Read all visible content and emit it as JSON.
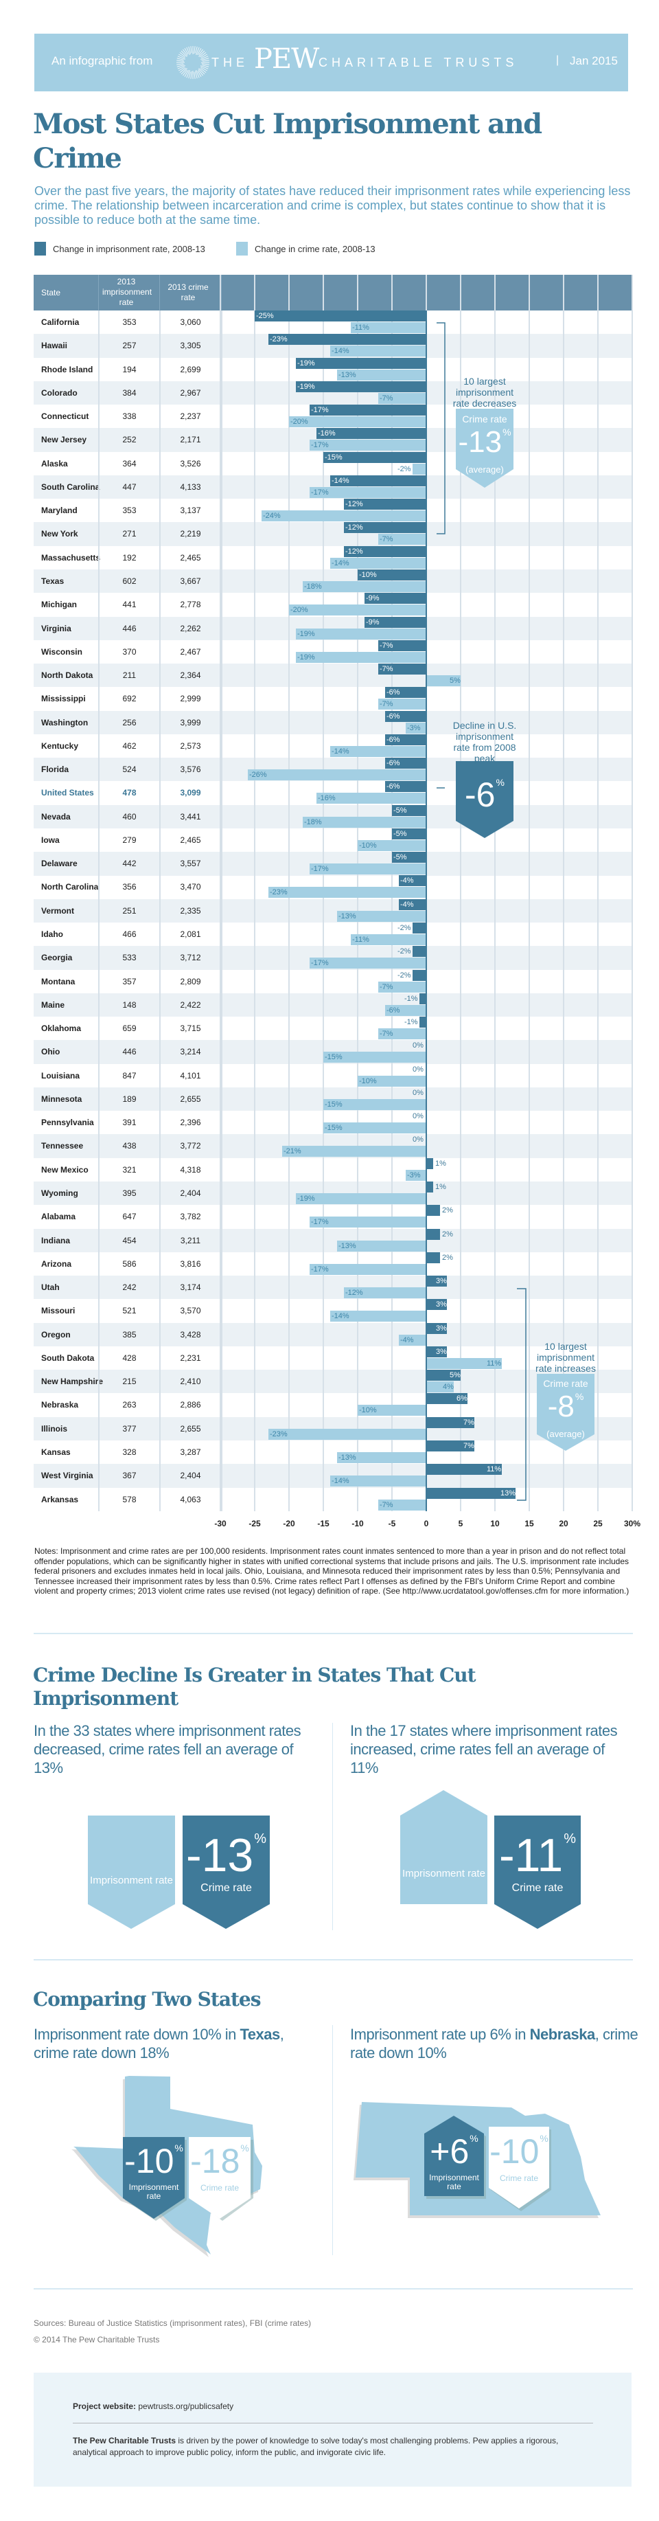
{
  "header": {
    "from_label": "An infographic from",
    "logo_the": "THE",
    "logo_pew": "PEW",
    "logo_rest": "CHARITABLE TRUSTS",
    "separator": "|",
    "date": "Jan 2015"
  },
  "title": "Most States Cut Imprisonment and Crime",
  "lead": "Over the past five years, the majority of states have reduced their imprisonment rates while experiencing less crime. The relationship between incarceration and crime is complex, but states continue to show that it is possible to reduce both at the same time.",
  "colors": {
    "dark": "#3f7a99",
    "light": "#a3cfe3",
    "title": "#3b7796",
    "header": "#6890aa"
  },
  "chart_data": {
    "type": "bar",
    "legend": [
      "Change in imprisonment rate, 2008-13",
      "Change in crime rate, 2008-13"
    ],
    "columns": [
      "State",
      "2013 imprisonment rate",
      "2013 crime rate"
    ],
    "xlim": [
      -30,
      30
    ],
    "xticks": [
      "-30",
      "-25",
      "-20",
      "-15",
      "-10",
      "-5",
      "0",
      "5",
      "10",
      "15",
      "20",
      "25",
      "30%"
    ],
    "rows": [
      {
        "state": "California",
        "imp_rate": "353",
        "crime_rate": "3,060",
        "imp_change": -25,
        "crime_change": -11
      },
      {
        "state": "Hawaii",
        "imp_rate": "257",
        "crime_rate": "3,305",
        "imp_change": -23,
        "crime_change": -14
      },
      {
        "state": "Rhode Island",
        "imp_rate": "194",
        "crime_rate": "2,699",
        "imp_change": -19,
        "crime_change": -13
      },
      {
        "state": "Colorado",
        "imp_rate": "384",
        "crime_rate": "2,967",
        "imp_change": -19,
        "crime_change": -7
      },
      {
        "state": "Connecticut",
        "imp_rate": "338",
        "crime_rate": "2,237",
        "imp_change": -17,
        "crime_change": -20
      },
      {
        "state": "New Jersey",
        "imp_rate": "252",
        "crime_rate": "2,171",
        "imp_change": -16,
        "crime_change": -17
      },
      {
        "state": "Alaska",
        "imp_rate": "364",
        "crime_rate": "3,526",
        "imp_change": -15,
        "crime_change": -2
      },
      {
        "state": "South Carolina",
        "imp_rate": "447",
        "crime_rate": "4,133",
        "imp_change": -14,
        "crime_change": -17
      },
      {
        "state": "Maryland",
        "imp_rate": "353",
        "crime_rate": "3,137",
        "imp_change": -12,
        "crime_change": -24
      },
      {
        "state": "New York",
        "imp_rate": "271",
        "crime_rate": "2,219",
        "imp_change": -12,
        "crime_change": -7
      },
      {
        "state": "Massachusetts",
        "imp_rate": "192",
        "crime_rate": "2,465",
        "imp_change": -12,
        "crime_change": -14
      },
      {
        "state": "Texas",
        "imp_rate": "602",
        "crime_rate": "3,667",
        "imp_change": -10,
        "crime_change": -18
      },
      {
        "state": "Michigan",
        "imp_rate": "441",
        "crime_rate": "2,778",
        "imp_change": -9,
        "crime_change": -20
      },
      {
        "state": "Virginia",
        "imp_rate": "446",
        "crime_rate": "2,262",
        "imp_change": -9,
        "crime_change": -19
      },
      {
        "state": "Wisconsin",
        "imp_rate": "370",
        "crime_rate": "2,467",
        "imp_change": -7,
        "crime_change": -19
      },
      {
        "state": "North Dakota",
        "imp_rate": "211",
        "crime_rate": "2,364",
        "imp_change": -7,
        "crime_change": 5
      },
      {
        "state": "Mississippi",
        "imp_rate": "692",
        "crime_rate": "2,999",
        "imp_change": -6,
        "crime_change": -7
      },
      {
        "state": "Washington",
        "imp_rate": "256",
        "crime_rate": "3,999",
        "imp_change": -6,
        "crime_change": -3
      },
      {
        "state": "Kentucky",
        "imp_rate": "462",
        "crime_rate": "2,573",
        "imp_change": -6,
        "crime_change": -14
      },
      {
        "state": "Florida",
        "imp_rate": "524",
        "crime_rate": "3,576",
        "imp_change": -6,
        "crime_change": -26
      },
      {
        "state": "United States",
        "imp_rate": "478",
        "crime_rate": "3,099",
        "imp_change": -6,
        "crime_change": -16,
        "highlight": true
      },
      {
        "state": "Nevada",
        "imp_rate": "460",
        "crime_rate": "3,441",
        "imp_change": -5,
        "crime_change": -18
      },
      {
        "state": "Iowa",
        "imp_rate": "279",
        "crime_rate": "2,465",
        "imp_change": -5,
        "crime_change": -10
      },
      {
        "state": "Delaware",
        "imp_rate": "442",
        "crime_rate": "3,557",
        "imp_change": -5,
        "crime_change": -17
      },
      {
        "state": "North Carolina",
        "imp_rate": "356",
        "crime_rate": "3,470",
        "imp_change": -4,
        "crime_change": -23
      },
      {
        "state": "Vermont",
        "imp_rate": "251",
        "crime_rate": "2,335",
        "imp_change": -4,
        "crime_change": -13
      },
      {
        "state": "Idaho",
        "imp_rate": "466",
        "crime_rate": "2,081",
        "imp_change": -2,
        "crime_change": -11
      },
      {
        "state": "Georgia",
        "imp_rate": "533",
        "crime_rate": "3,712",
        "imp_change": -2,
        "crime_change": -17
      },
      {
        "state": "Montana",
        "imp_rate": "357",
        "crime_rate": "2,809",
        "imp_change": -2,
        "crime_change": -7
      },
      {
        "state": "Maine",
        "imp_rate": "148",
        "crime_rate": "2,422",
        "imp_change": -1,
        "crime_change": -6
      },
      {
        "state": "Oklahoma",
        "imp_rate": "659",
        "crime_rate": "3,715",
        "imp_change": -1,
        "crime_change": -7
      },
      {
        "state": "Ohio",
        "imp_rate": "446",
        "crime_rate": "3,214",
        "imp_change": 0,
        "crime_change": -15
      },
      {
        "state": "Louisiana",
        "imp_rate": "847",
        "crime_rate": "4,101",
        "imp_change": 0,
        "crime_change": -10
      },
      {
        "state": "Minnesota",
        "imp_rate": "189",
        "crime_rate": "2,655",
        "imp_change": 0,
        "crime_change": -15
      },
      {
        "state": "Pennsylvania",
        "imp_rate": "391",
        "crime_rate": "2,396",
        "imp_change": 0,
        "crime_change": -15
      },
      {
        "state": "Tennessee",
        "imp_rate": "438",
        "crime_rate": "3,772",
        "imp_change": 0,
        "crime_change": -21
      },
      {
        "state": "New Mexico",
        "imp_rate": "321",
        "crime_rate": "4,318",
        "imp_change": 1,
        "crime_change": -3
      },
      {
        "state": "Wyoming",
        "imp_rate": "395",
        "crime_rate": "2,404",
        "imp_change": 1,
        "crime_change": -19
      },
      {
        "state": "Alabama",
        "imp_rate": "647",
        "crime_rate": "3,782",
        "imp_change": 2,
        "crime_change": -17
      },
      {
        "state": "Indiana",
        "imp_rate": "454",
        "crime_rate": "3,211",
        "imp_change": 2,
        "crime_change": -13
      },
      {
        "state": "Arizona",
        "imp_rate": "586",
        "crime_rate": "3,816",
        "imp_change": 2,
        "crime_change": -17
      },
      {
        "state": "Utah",
        "imp_rate": "242",
        "crime_rate": "3,174",
        "imp_change": 3,
        "crime_change": -12
      },
      {
        "state": "Missouri",
        "imp_rate": "521",
        "crime_rate": "3,570",
        "imp_change": 3,
        "crime_change": -14
      },
      {
        "state": "Oregon",
        "imp_rate": "385",
        "crime_rate": "3,428",
        "imp_change": 3,
        "crime_change": -4
      },
      {
        "state": "South Dakota",
        "imp_rate": "428",
        "crime_rate": "2,231",
        "imp_change": 3,
        "crime_change": 11
      },
      {
        "state": "New Hampshire",
        "imp_rate": "215",
        "crime_rate": "2,410",
        "imp_change": 5,
        "crime_change": 4
      },
      {
        "state": "Nebraska",
        "imp_rate": "263",
        "crime_rate": "2,886",
        "imp_change": 6,
        "crime_change": -10
      },
      {
        "state": "Illinois",
        "imp_rate": "377",
        "crime_rate": "2,655",
        "imp_change": 7,
        "crime_change": -23
      },
      {
        "state": "Kansas",
        "imp_rate": "328",
        "crime_rate": "3,287",
        "imp_change": 7,
        "crime_change": -13
      },
      {
        "state": "West Virginia",
        "imp_rate": "367",
        "crime_rate": "2,404",
        "imp_change": 11,
        "crime_change": -14
      },
      {
        "state": "Arkansas",
        "imp_rate": "578",
        "crime_rate": "4,063",
        "imp_change": 13,
        "crime_change": -7
      }
    ],
    "annotations": {
      "decreases": {
        "heading": "10 largest imprisonment rate decreases",
        "label": "Crime rate",
        "value": "-13",
        "unit": "%",
        "note": "(average)"
      },
      "us": {
        "heading": "Decline in U.S. imprisonment rate from 2008 peak",
        "value": "-6",
        "unit": "%"
      },
      "increases": {
        "heading": "10 largest imprisonment rate increases",
        "label": "Crime rate",
        "value": "-8",
        "unit": "%",
        "note": "(average)"
      }
    }
  },
  "notes": "Notes: Imprisonment and crime rates are per 100,000 residents. Imprisonment rates count inmates sentenced to more than a year in prison and do not reflect total offender populations, which can be significantly higher in states with unified correctional systems that include prisons and jails. The U.S. imprisonment rate includes federal prisoners and excludes inmates held in local jails. Ohio, Louisiana, and Minnesota reduced their imprisonment rates by less than 0.5%; Pennsylvania and Tennessee increased their imprisonment rates by less than 0.5%. Crime rates reflect Part I offenses as defined by the FBI's Uniform Crime Report and combine violent and property crimes; 2013 violent crime rates use revised (not legacy) definition of rape. (See http://www.ucrdatatool.gov/offenses.cfm for more information.)",
  "section2": {
    "title": "Crime Decline Is Greater in States That Cut Imprisonment",
    "left": {
      "text": "In the 33 states where imprisonment rates decreased, crime rates fell an average of 13%",
      "imp_label": "Imprisonment rate",
      "value": "-13",
      "unit": "%",
      "crime_label": "Crime rate"
    },
    "right": {
      "text": "In the 17 states where imprisonment rates increased, crime rates fell an average of 11%",
      "imp_label": "Imprisonment rate",
      "value": "-11",
      "unit": "%",
      "crime_label": "Crime rate"
    }
  },
  "section3": {
    "title": "Comparing Two States",
    "texas": {
      "line1": "Imprisonment rate down 10% in",
      "state": "Texas",
      "line2": ", crime rate down 18%",
      "imp_value": "-10",
      "crime_value": "-18",
      "unit": "%",
      "imp_label": "Imprisonment rate",
      "crime_label": "Crime rate"
    },
    "nebraska": {
      "line1": "Imprisonment rate up 6% in",
      "state": "Nebraska",
      "line2": ", crime rate down 10%",
      "imp_value": "+6",
      "crime_value": "-10",
      "unit": "%",
      "imp_label": "Imprisonment rate",
      "crime_label": "Crime rate"
    }
  },
  "sources": "Sources: Bureau of Justice Statistics (imprisonment rates), FBI (crime rates)",
  "copyright": "© 2014 The Pew Charitable Trusts",
  "footer": {
    "website_label": "Project website:",
    "website": "pewtrusts.org/publicsafety",
    "about_bold": "The Pew Charitable Trusts",
    "about": " is driven by the power of knowledge to solve today's most challenging problems. Pew applies a rigorous, analytical approach to improve public policy, inform the public, and invigorate civic life."
  }
}
